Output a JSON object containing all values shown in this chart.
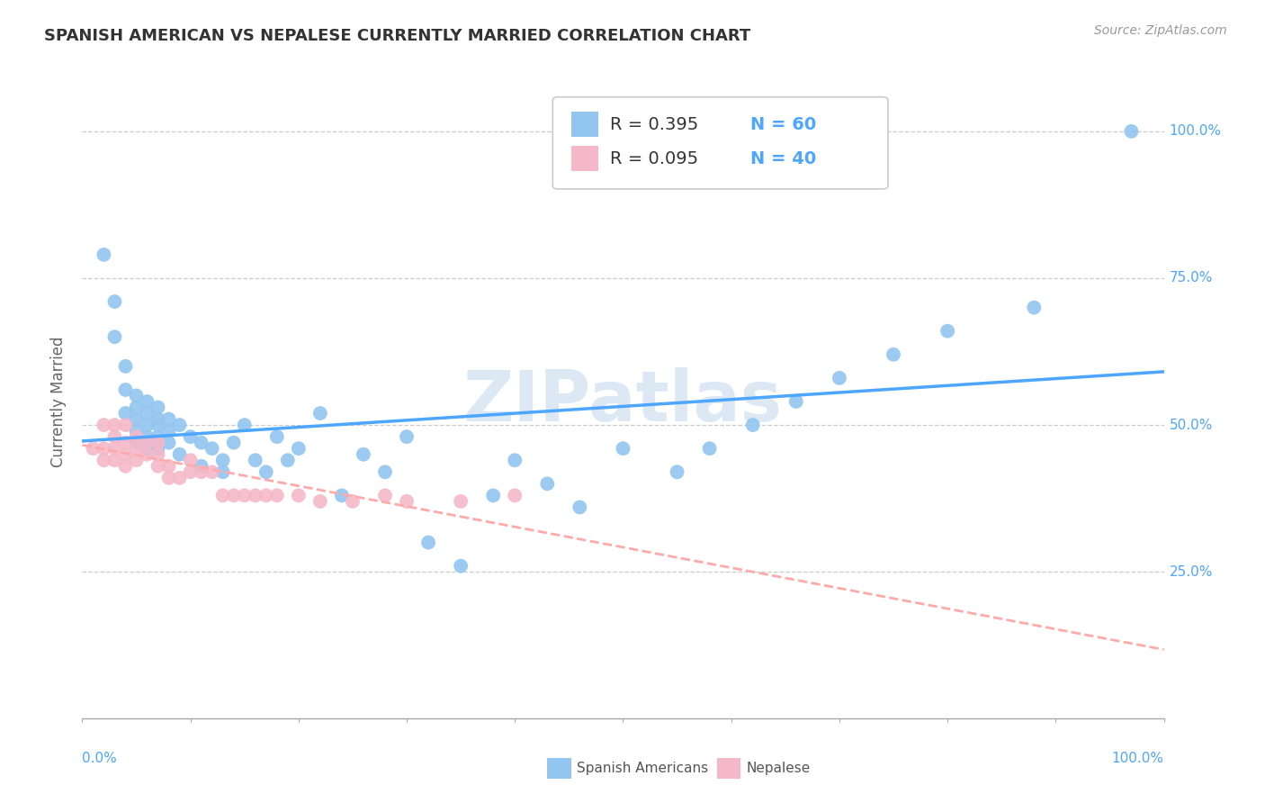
{
  "title": "SPANISH AMERICAN VS NEPALESE CURRENTLY MARRIED CORRELATION CHART",
  "source": "Source: ZipAtlas.com",
  "ylabel": "Currently Married",
  "blue_color": "#92c5f0",
  "pink_color": "#f4b8c8",
  "line_blue": "#4da6ff",
  "line_pink": "#ffaaaa",
  "blue_r": 0.395,
  "blue_n": 60,
  "pink_r": 0.095,
  "pink_n": 40,
  "label_color": "#4da6ff",
  "text_color": "#333333",
  "source_color": "#999999",
  "watermark_color": "#dde8f5",
  "blue_x": [
    0.02,
    0.03,
    0.03,
    0.04,
    0.04,
    0.04,
    0.05,
    0.05,
    0.05,
    0.05,
    0.05,
    0.06,
    0.06,
    0.06,
    0.06,
    0.06,
    0.07,
    0.07,
    0.07,
    0.07,
    0.07,
    0.08,
    0.08,
    0.08,
    0.09,
    0.09,
    0.1,
    0.11,
    0.11,
    0.12,
    0.13,
    0.13,
    0.14,
    0.15,
    0.16,
    0.17,
    0.18,
    0.19,
    0.2,
    0.22,
    0.24,
    0.26,
    0.28,
    0.3,
    0.32,
    0.35,
    0.38,
    0.4,
    0.43,
    0.46,
    0.5,
    0.55,
    0.58,
    0.62,
    0.66,
    0.7,
    0.75,
    0.8,
    0.88,
    0.97
  ],
  "blue_y": [
    0.79,
    0.71,
    0.65,
    0.6,
    0.56,
    0.52,
    0.55,
    0.53,
    0.51,
    0.49,
    0.47,
    0.54,
    0.52,
    0.5,
    0.48,
    0.46,
    0.53,
    0.51,
    0.5,
    0.48,
    0.46,
    0.51,
    0.49,
    0.47,
    0.5,
    0.45,
    0.48,
    0.47,
    0.43,
    0.46,
    0.44,
    0.42,
    0.47,
    0.5,
    0.44,
    0.42,
    0.48,
    0.44,
    0.46,
    0.52,
    0.38,
    0.45,
    0.42,
    0.48,
    0.3,
    0.26,
    0.38,
    0.44,
    0.4,
    0.36,
    0.46,
    0.42,
    0.46,
    0.5,
    0.54,
    0.58,
    0.62,
    0.66,
    0.7,
    1.0
  ],
  "pink_x": [
    0.01,
    0.02,
    0.02,
    0.02,
    0.03,
    0.03,
    0.03,
    0.03,
    0.04,
    0.04,
    0.04,
    0.04,
    0.05,
    0.05,
    0.05,
    0.06,
    0.06,
    0.07,
    0.07,
    0.07,
    0.08,
    0.08,
    0.09,
    0.1,
    0.1,
    0.11,
    0.12,
    0.13,
    0.14,
    0.15,
    0.16,
    0.17,
    0.18,
    0.2,
    0.22,
    0.25,
    0.28,
    0.3,
    0.35,
    0.4
  ],
  "pink_y": [
    0.46,
    0.5,
    0.46,
    0.44,
    0.5,
    0.48,
    0.46,
    0.44,
    0.5,
    0.47,
    0.45,
    0.43,
    0.48,
    0.46,
    0.44,
    0.47,
    0.45,
    0.47,
    0.45,
    0.43,
    0.43,
    0.41,
    0.41,
    0.44,
    0.42,
    0.42,
    0.42,
    0.38,
    0.38,
    0.38,
    0.38,
    0.38,
    0.38,
    0.38,
    0.37,
    0.37,
    0.38,
    0.37,
    0.37,
    0.38
  ],
  "yticks": [
    0.25,
    0.5,
    0.75,
    1.0
  ],
  "ytick_labels": [
    "25.0%",
    "50.0%",
    "75.0%",
    "100.0%"
  ]
}
